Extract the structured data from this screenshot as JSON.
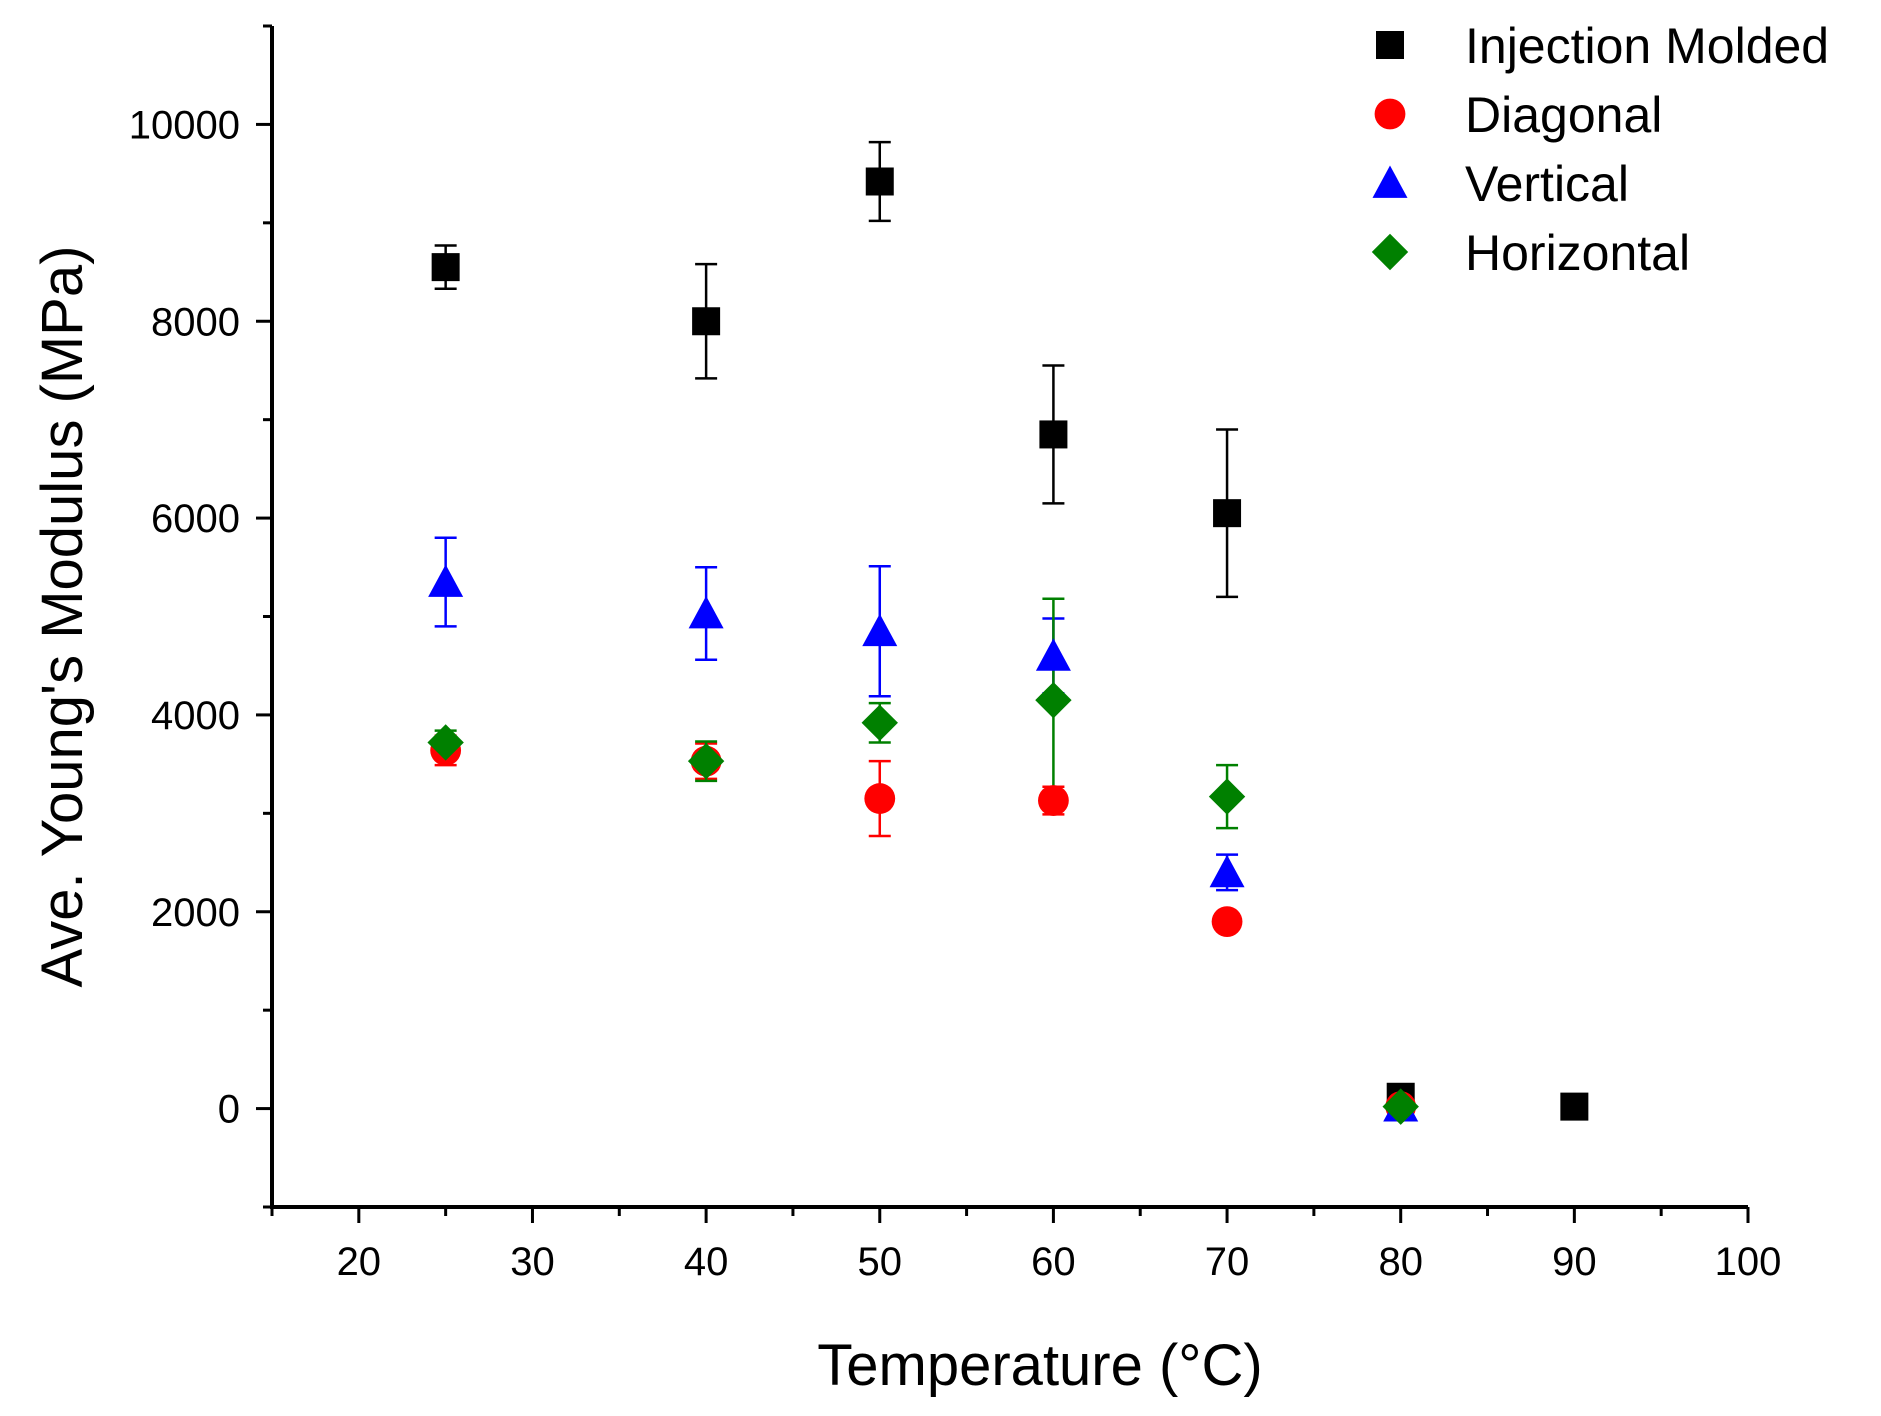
{
  "chart_data": {
    "type": "scatter",
    "title": "",
    "xlabel": "Temperature (°C)",
    "ylabel": "Ave. Young's Modulus (MPa)",
    "xlim": [
      15,
      100
    ],
    "ylim": [
      -1000,
      11000
    ],
    "x_ticks": [
      20,
      30,
      40,
      50,
      60,
      70,
      80,
      90,
      100
    ],
    "y_ticks": [
      0,
      2000,
      4000,
      6000,
      8000,
      10000
    ],
    "x_minor_step": 5,
    "y_minor_step": 1000,
    "grid": false,
    "legend_position": "top-right",
    "series": [
      {
        "name": "Injection Molded",
        "marker": "square",
        "color": "#000000",
        "points": [
          {
            "x": 25,
            "y": 8550,
            "err": 220
          },
          {
            "x": 40,
            "y": 8000,
            "err": 580
          },
          {
            "x": 50,
            "y": 9420,
            "err": 400
          },
          {
            "x": 60,
            "y": 6850,
            "err": 700
          },
          {
            "x": 70,
            "y": 6050,
            "err": 850
          },
          {
            "x": 80,
            "y": 120,
            "err": 0
          },
          {
            "x": 90,
            "y": 20,
            "err": 0
          }
        ]
      },
      {
        "name": "Diagonal",
        "marker": "circle",
        "color": "#ff0000",
        "points": [
          {
            "x": 25,
            "y": 3640,
            "err": 150
          },
          {
            "x": 40,
            "y": 3530,
            "err": 180
          },
          {
            "x": 50,
            "y": 3150,
            "err": 380
          },
          {
            "x": 60,
            "y": 3130,
            "err": 140
          },
          {
            "x": 70,
            "y": 1900,
            "err": 0
          },
          {
            "x": 80,
            "y": 20,
            "err": 0
          }
        ]
      },
      {
        "name": "Vertical",
        "marker": "triangle",
        "color": "#0000ff",
        "points": [
          {
            "x": 25,
            "y": 5350,
            "err": 450
          },
          {
            "x": 40,
            "y": 5030,
            "err": 470
          },
          {
            "x": 50,
            "y": 4850,
            "err": 660
          },
          {
            "x": 60,
            "y": 4600,
            "err": 380
          },
          {
            "x": 70,
            "y": 2400,
            "err": 180
          },
          {
            "x": 80,
            "y": 20,
            "err": 0
          }
        ]
      },
      {
        "name": "Horizontal",
        "marker": "diamond",
        "color": "#008000",
        "points": [
          {
            "x": 25,
            "y": 3720,
            "err": 120
          },
          {
            "x": 40,
            "y": 3530,
            "err": 200
          },
          {
            "x": 50,
            "y": 3920,
            "err": 200
          },
          {
            "x": 60,
            "y": 4150,
            "err": 1030
          },
          {
            "x": 70,
            "y": 3170,
            "err": 320
          },
          {
            "x": 80,
            "y": 20,
            "err": 0
          }
        ]
      }
    ]
  }
}
